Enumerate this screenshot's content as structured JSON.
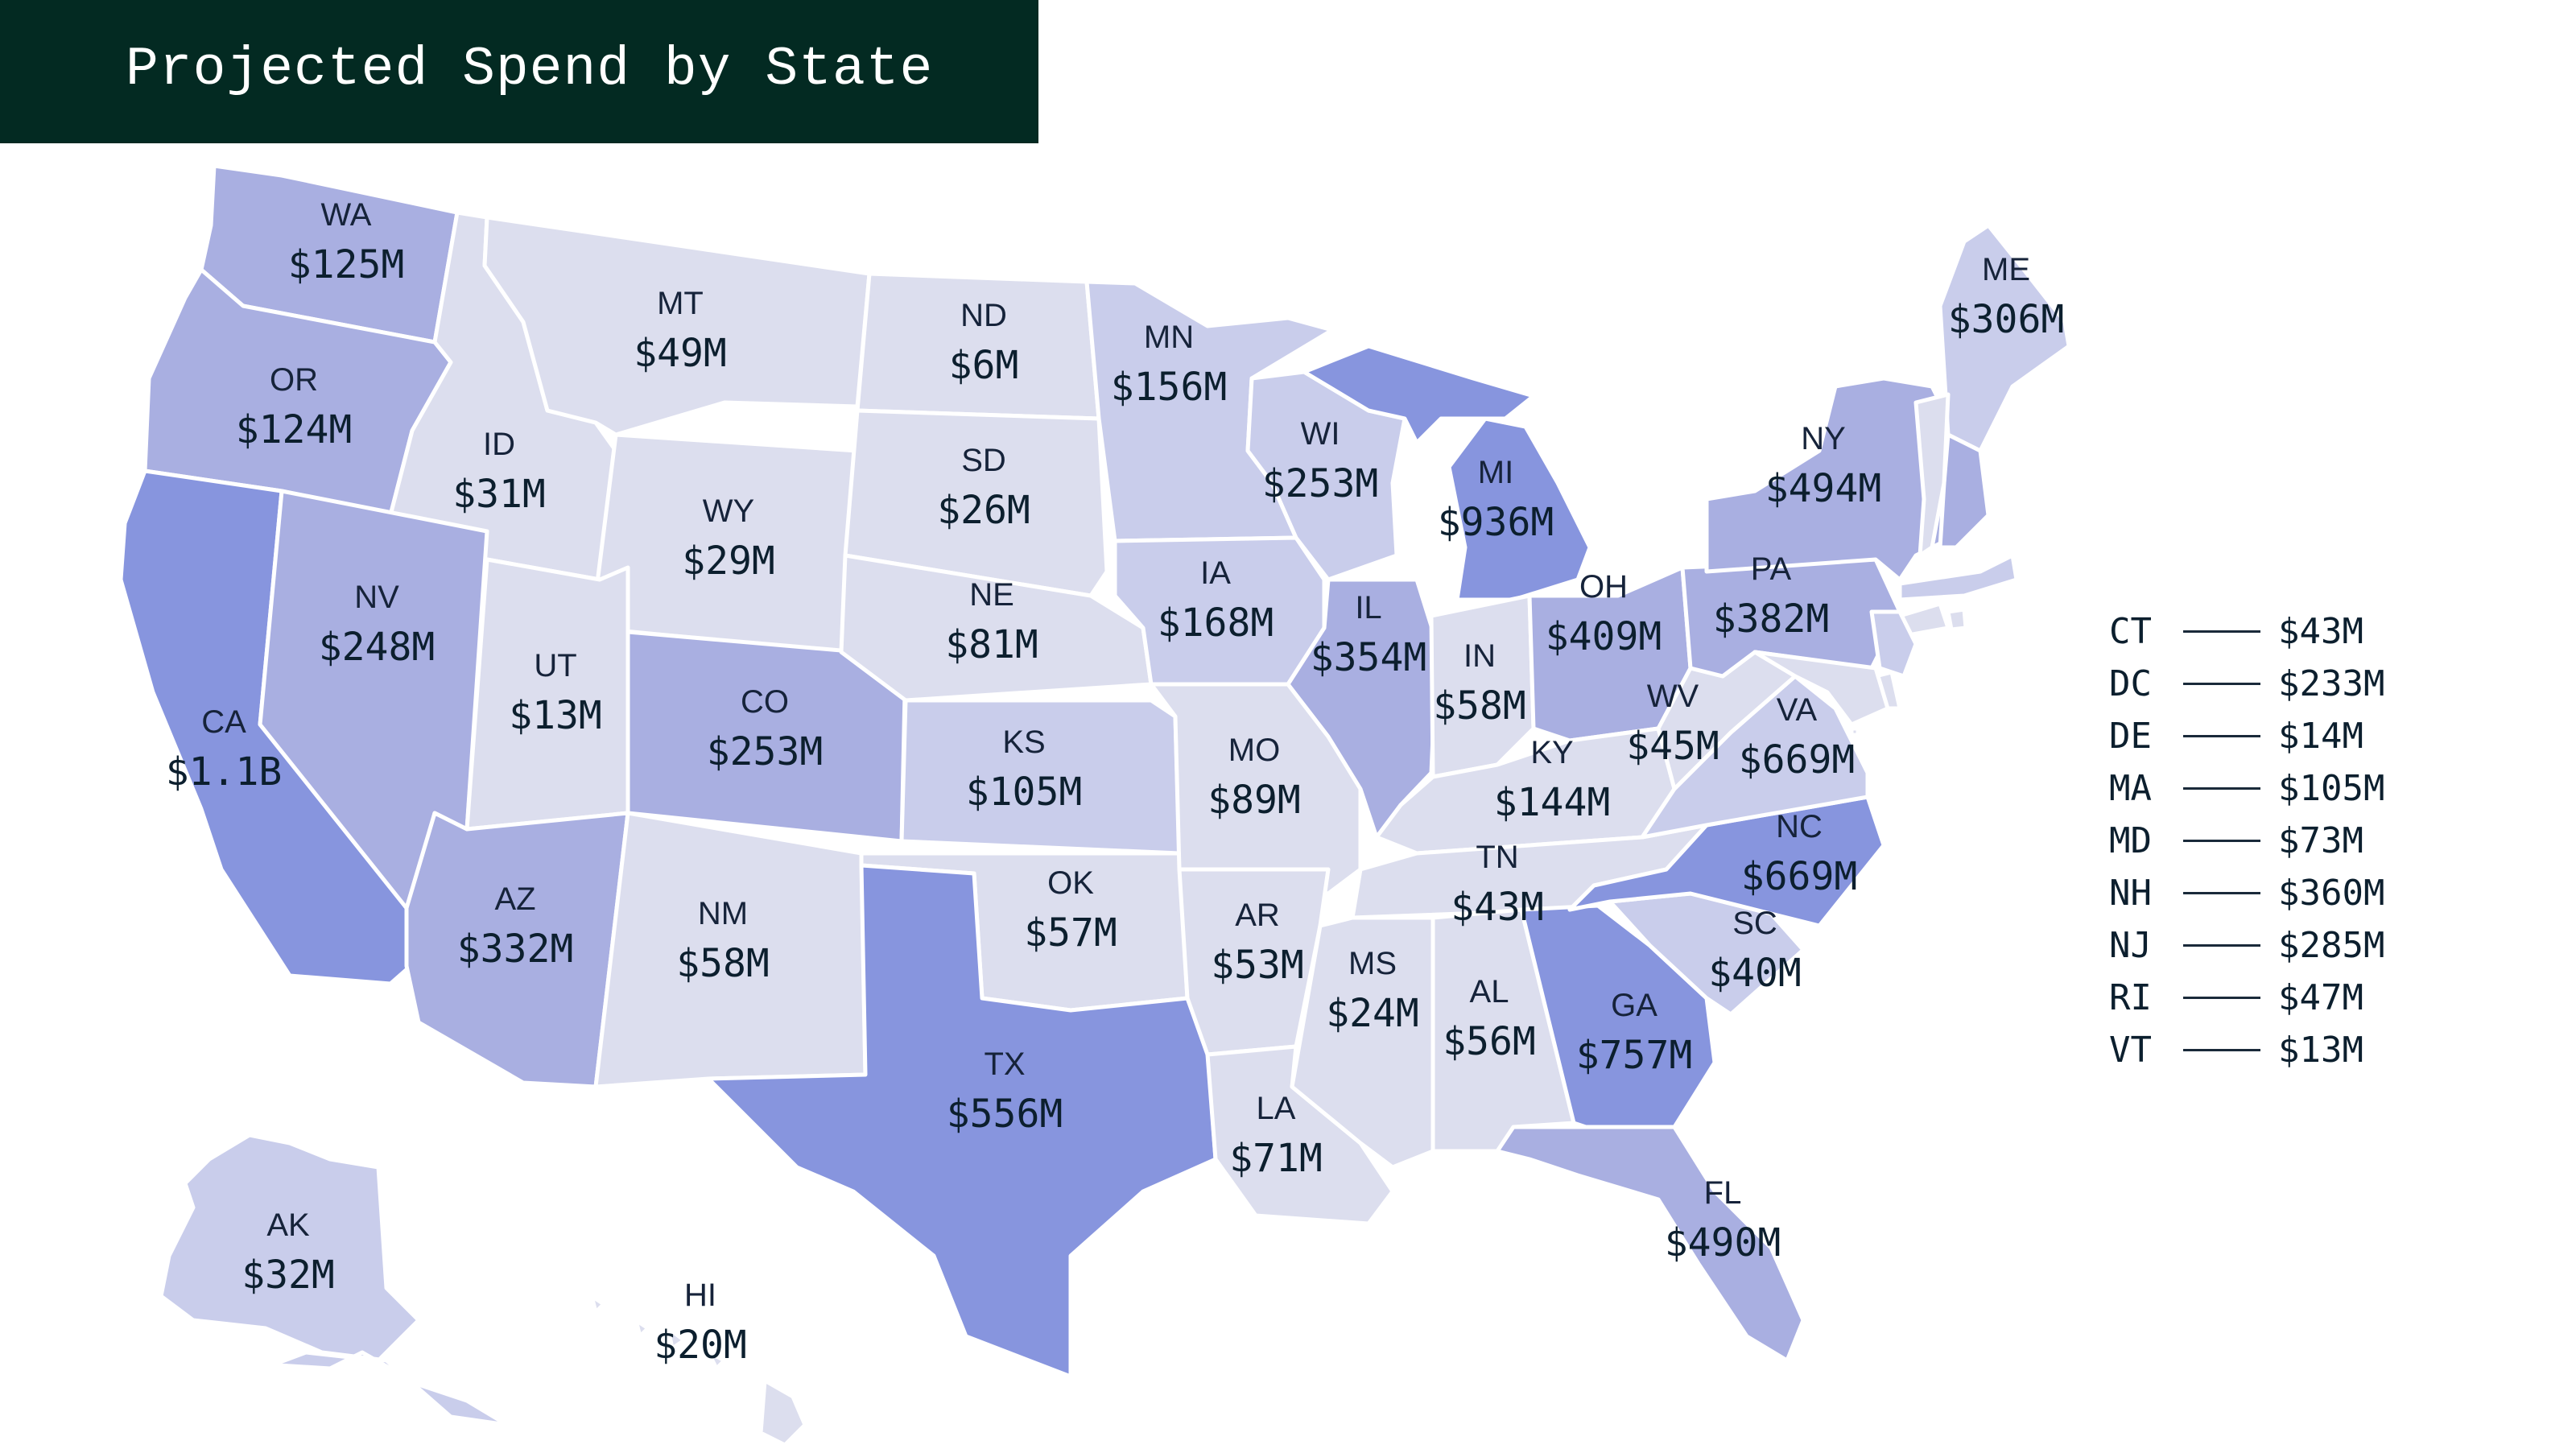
{
  "title": "Projected Spend by State",
  "colors": {
    "title_bg": "#032a22",
    "tier_1": "#dcdeee",
    "tier_2": "#c9cdeb",
    "tier_3": "#a9afe1",
    "tier_4": "#8795de"
  },
  "states": [
    {
      "abbr": "WA",
      "value": "$125M",
      "tier": 3
    },
    {
      "abbr": "OR",
      "value": "$124M",
      "tier": 3
    },
    {
      "abbr": "CA",
      "value": "$1.1B",
      "tier": 4
    },
    {
      "abbr": "ID",
      "value": "$31M",
      "tier": 1
    },
    {
      "abbr": "NV",
      "value": "$248M",
      "tier": 3
    },
    {
      "abbr": "MT",
      "value": "$49M",
      "tier": 1
    },
    {
      "abbr": "WY",
      "value": "$29M",
      "tier": 1
    },
    {
      "abbr": "UT",
      "value": "$13M",
      "tier": 1
    },
    {
      "abbr": "AZ",
      "value": "$332M",
      "tier": 3
    },
    {
      "abbr": "CO",
      "value": "$253M",
      "tier": 3
    },
    {
      "abbr": "NM",
      "value": "$58M",
      "tier": 1
    },
    {
      "abbr": "ND",
      "value": "$6M",
      "tier": 1
    },
    {
      "abbr": "SD",
      "value": "$26M",
      "tier": 1
    },
    {
      "abbr": "NE",
      "value": "$81M",
      "tier": 1
    },
    {
      "abbr": "KS",
      "value": "$105M",
      "tier": 2
    },
    {
      "abbr": "OK",
      "value": "$57M",
      "tier": 1
    },
    {
      "abbr": "TX",
      "value": "$556M",
      "tier": 4
    },
    {
      "abbr": "MN",
      "value": "$156M",
      "tier": 2
    },
    {
      "abbr": "IA",
      "value": "$168M",
      "tier": 2
    },
    {
      "abbr": "MO",
      "value": "$89M",
      "tier": 1
    },
    {
      "abbr": "AR",
      "value": "$53M",
      "tier": 1
    },
    {
      "abbr": "LA",
      "value": "$71M",
      "tier": 1
    },
    {
      "abbr": "WI",
      "value": "$253M",
      "tier": 2
    },
    {
      "abbr": "IL",
      "value": "$354M",
      "tier": 3
    },
    {
      "abbr": "MI",
      "value": "$936M",
      "tier": 4
    },
    {
      "abbr": "IN",
      "value": "$58M",
      "tier": 1
    },
    {
      "abbr": "OH",
      "value": "$409M",
      "tier": 3
    },
    {
      "abbr": "KY",
      "value": "$144M",
      "tier": 1
    },
    {
      "abbr": "TN",
      "value": "$43M",
      "tier": 1
    },
    {
      "abbr": "MS",
      "value": "$24M",
      "tier": 1
    },
    {
      "abbr": "AL",
      "value": "$56M",
      "tier": 1
    },
    {
      "abbr": "GA",
      "value": "$757M",
      "tier": 4
    },
    {
      "abbr": "FL",
      "value": "$490M",
      "tier": 3
    },
    {
      "abbr": "SC",
      "value": "$40M",
      "tier": 2
    },
    {
      "abbr": "NC",
      "value": "$669M",
      "tier": 4
    },
    {
      "abbr": "VA",
      "value": "$669M",
      "tier": 2
    },
    {
      "abbr": "WV",
      "value": "$45M",
      "tier": 1
    },
    {
      "abbr": "PA",
      "value": "$382M",
      "tier": 3
    },
    {
      "abbr": "NY",
      "value": "$494M",
      "tier": 3
    },
    {
      "abbr": "ME",
      "value": "$306M",
      "tier": 2
    },
    {
      "abbr": "AK",
      "value": "$32M",
      "tier": 2
    },
    {
      "abbr": "HI",
      "value": "$20M",
      "tier": 1
    }
  ],
  "small_states": [
    {
      "abbr": "CT",
      "value": "$43M",
      "tier": 1
    },
    {
      "abbr": "DC",
      "value": "$233M",
      "tier": 1
    },
    {
      "abbr": "DE",
      "value": "$14M",
      "tier": 1
    },
    {
      "abbr": "MA",
      "value": "$105M",
      "tier": 2
    },
    {
      "abbr": "MD",
      "value": "$73M",
      "tier": 1
    },
    {
      "abbr": "NH",
      "value": "$360M",
      "tier": 3
    },
    {
      "abbr": "NJ",
      "value": "$285M",
      "tier": 2
    },
    {
      "abbr": "RI",
      "value": "$47M",
      "tier": 1
    },
    {
      "abbr": "VT",
      "value": "$13M",
      "tier": 1
    }
  ]
}
